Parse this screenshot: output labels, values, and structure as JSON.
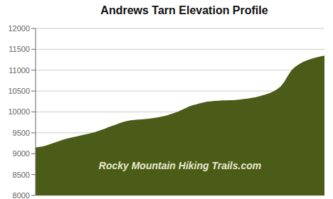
{
  "chart_data": {
    "type": "area",
    "title": "Andrews Tarn Elevation Profile",
    "annotations": [
      "Rocky Mountain Hiking Trails.com"
    ],
    "color": "#4a5c18",
    "ylim": [
      8000,
      12000
    ],
    "yticks": [
      8000,
      8500,
      9000,
      9500,
      10000,
      10500,
      11000,
      11500,
      12000
    ],
    "grid": true,
    "tick_labels": "y",
    "values": [
      9150,
      9160,
      9175,
      9200,
      9230,
      9260,
      9290,
      9320,
      9350,
      9370,
      9390,
      9410,
      9430,
      9450,
      9470,
      9490,
      9510,
      9540,
      9570,
      9600,
      9640,
      9670,
      9700,
      9730,
      9760,
      9785,
      9800,
      9810,
      9815,
      9820,
      9830,
      9840,
      9850,
      9865,
      9880,
      9900,
      9920,
      9950,
      9980,
      10010,
      10050,
      10090,
      10130,
      10160,
      10185,
      10210,
      10230,
      10245,
      10255,
      10265,
      10270,
      10275,
      10278,
      10280,
      10282,
      10290,
      10300,
      10310,
      10320,
      10335,
      10350,
      10370,
      10395,
      10420,
      10450,
      10490,
      10540,
      10610,
      10720,
      10870,
      11000,
      11080,
      11140,
      11190,
      11230,
      11260,
      11290,
      11310,
      11330,
      11350
    ]
  }
}
